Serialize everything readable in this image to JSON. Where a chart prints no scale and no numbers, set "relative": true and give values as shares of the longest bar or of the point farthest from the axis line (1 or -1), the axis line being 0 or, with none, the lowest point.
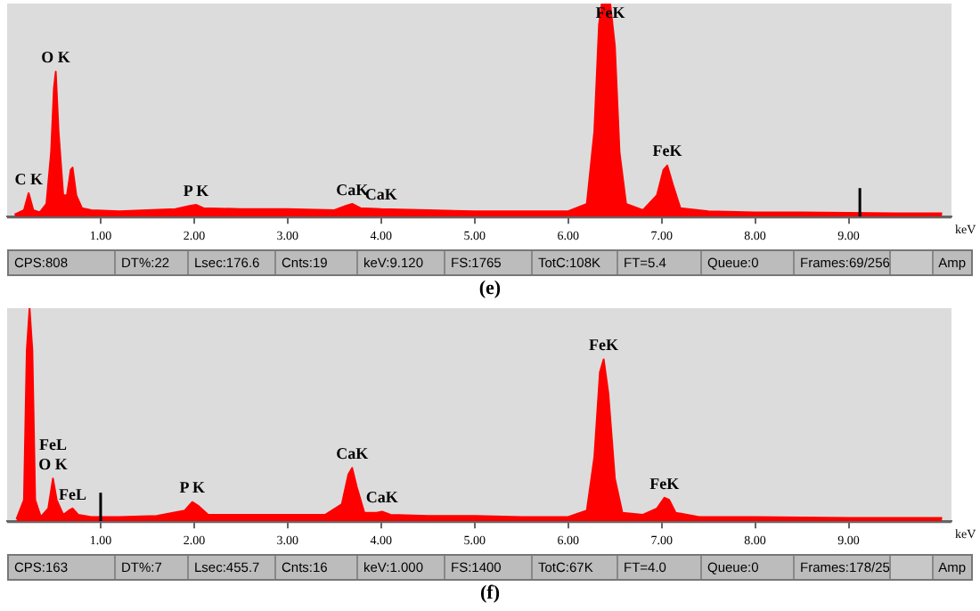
{
  "chart_data": [
    {
      "type": "area",
      "title": "(e)",
      "relative": true,
      "color": "#ff0000",
      "xlabel": "keV",
      "x": [
        0.08,
        0.18,
        0.23,
        0.28,
        0.35,
        0.42,
        0.47,
        0.5,
        0.52,
        0.55,
        0.6,
        0.64,
        0.68,
        0.7,
        0.74,
        0.8,
        0.9,
        1.2,
        1.5,
        1.8,
        1.95,
        2.02,
        2.1,
        2.5,
        3.0,
        3.5,
        3.62,
        3.69,
        3.78,
        4.0,
        4.5,
        5.0,
        5.5,
        6.0,
        6.2,
        6.28,
        6.33,
        6.36,
        6.45,
        6.5,
        6.55,
        6.62,
        6.8,
        6.95,
        7.02,
        7.06,
        7.12,
        7.2,
        7.5,
        8.0,
        8.5,
        9.0,
        9.5,
        10.0
      ],
      "values": [
        0.01,
        0.03,
        0.11,
        0.03,
        0.02,
        0.06,
        0.3,
        0.6,
        0.68,
        0.4,
        0.1,
        0.1,
        0.22,
        0.23,
        0.1,
        0.04,
        0.03,
        0.025,
        0.03,
        0.035,
        0.05,
        0.055,
        0.04,
        0.035,
        0.035,
        0.03,
        0.05,
        0.06,
        0.04,
        0.035,
        0.03,
        0.025,
        0.025,
        0.025,
        0.06,
        0.4,
        0.9,
        1.0,
        1.0,
        0.8,
        0.3,
        0.06,
        0.03,
        0.1,
        0.22,
        0.24,
        0.15,
        0.04,
        0.025,
        0.02,
        0.02,
        0.018,
        0.015,
        0.015
      ],
      "xlim": [
        0,
        10.1
      ],
      "xticks": [
        {
          "value": 1,
          "label": "1.00"
        },
        {
          "value": 2,
          "label": "2.00"
        },
        {
          "value": 3,
          "label": "3.00"
        },
        {
          "value": 4,
          "label": "4.00"
        },
        {
          "value": 5,
          "label": "5.00"
        },
        {
          "value": 6,
          "label": "6.00"
        },
        {
          "value": 7,
          "label": "7.00"
        },
        {
          "value": 8,
          "label": "8.00"
        },
        {
          "value": 9,
          "label": "9.00"
        }
      ],
      "ref_lines": [
        {
          "axis": "x",
          "value": 9.12,
          "color": "#000000"
        }
      ],
      "annotations": [
        {
          "text": "C K",
          "x": 0.23,
          "y": 0.11
        },
        {
          "text": "O K",
          "x": 0.52,
          "y": 0.68
        },
        {
          "text": "P K",
          "x": 2.02,
          "y": 0.055
        },
        {
          "text": "CaK",
          "x": 3.69,
          "y": 0.06
        },
        {
          "text": "CaK",
          "x": 4.0,
          "y": 0.035
        },
        {
          "text": "FeK",
          "x": 6.45,
          "y": 1.0
        },
        {
          "text": "FeK",
          "x": 7.06,
          "y": 0.24
        },
        "CPS:808",
        "DT%:22",
        "Lsec:176.6",
        "Cnts:19",
        "keV:9.120",
        "FS:1765",
        "TotC:108K",
        "FT=5.4",
        "Queue:0",
        "Frames:69/256",
        "Amp"
      ]
    },
    {
      "type": "area",
      "title": "(f)",
      "relative": true,
      "color": "#ff0000",
      "xlabel": "keV",
      "x": [
        0.1,
        0.18,
        0.21,
        0.24,
        0.27,
        0.3,
        0.36,
        0.44,
        0.49,
        0.53,
        0.6,
        0.66,
        0.7,
        0.76,
        0.9,
        1.2,
        1.6,
        1.9,
        1.98,
        2.05,
        2.15,
        2.5,
        3.0,
        3.4,
        3.58,
        3.65,
        3.69,
        3.74,
        3.82,
        3.95,
        4.01,
        4.1,
        4.5,
        5.0,
        5.5,
        6.0,
        6.2,
        6.28,
        6.34,
        6.38,
        6.43,
        6.5,
        6.58,
        6.8,
        6.95,
        7.03,
        7.08,
        7.15,
        7.4,
        8.0,
        9.0,
        10.0
      ],
      "values": [
        0.01,
        0.1,
        0.8,
        1.0,
        0.8,
        0.1,
        0.02,
        0.06,
        0.2,
        0.1,
        0.03,
        0.05,
        0.06,
        0.03,
        0.02,
        0.02,
        0.025,
        0.05,
        0.09,
        0.07,
        0.03,
        0.03,
        0.03,
        0.03,
        0.08,
        0.22,
        0.25,
        0.16,
        0.04,
        0.04,
        0.045,
        0.03,
        0.025,
        0.025,
        0.02,
        0.02,
        0.05,
        0.3,
        0.7,
        0.76,
        0.6,
        0.2,
        0.04,
        0.03,
        0.06,
        0.11,
        0.1,
        0.04,
        0.02,
        0.02,
        0.015,
        0.015
      ],
      "xlim": [
        0,
        10.1
      ],
      "xticks": [
        {
          "value": 1,
          "label": "1.00"
        },
        {
          "value": 2,
          "label": "2.00"
        },
        {
          "value": 3,
          "label": "3.00"
        },
        {
          "value": 4,
          "label": "4.00"
        },
        {
          "value": 5,
          "label": "5.00"
        },
        {
          "value": 6,
          "label": "6.00"
        },
        {
          "value": 7,
          "label": "7.00"
        },
        {
          "value": 8,
          "label": "8.00"
        },
        {
          "value": 9,
          "label": "9.00"
        }
      ],
      "ref_lines": [
        {
          "axis": "x",
          "value": 1.0,
          "color": "#000000"
        }
      ],
      "annotations": [
        {
          "text": "O K",
          "x": 0.49,
          "y": 0.2
        },
        {
          "text": "FeL",
          "x": 0.49,
          "y": 0.2
        },
        {
          "text": "FeL",
          "x": 0.7,
          "y": 0.06
        },
        {
          "text": "P K",
          "x": 1.98,
          "y": 0.09
        },
        {
          "text": "CaK",
          "x": 3.69,
          "y": 0.25
        },
        {
          "text": "CaK",
          "x": 4.01,
          "y": 0.045
        },
        {
          "text": "FeK",
          "x": 6.38,
          "y": 0.76
        },
        {
          "text": "FeK",
          "x": 7.03,
          "y": 0.11
        },
        "CPS:163",
        "DT%:7",
        "Lsec:455.7",
        "Cnts:16",
        "keV:1.000",
        "FS:1400",
        "TotC:67K",
        "FT=4.0",
        "Queue:0",
        "Frames:178/25",
        "Amp"
      ]
    }
  ]
}
